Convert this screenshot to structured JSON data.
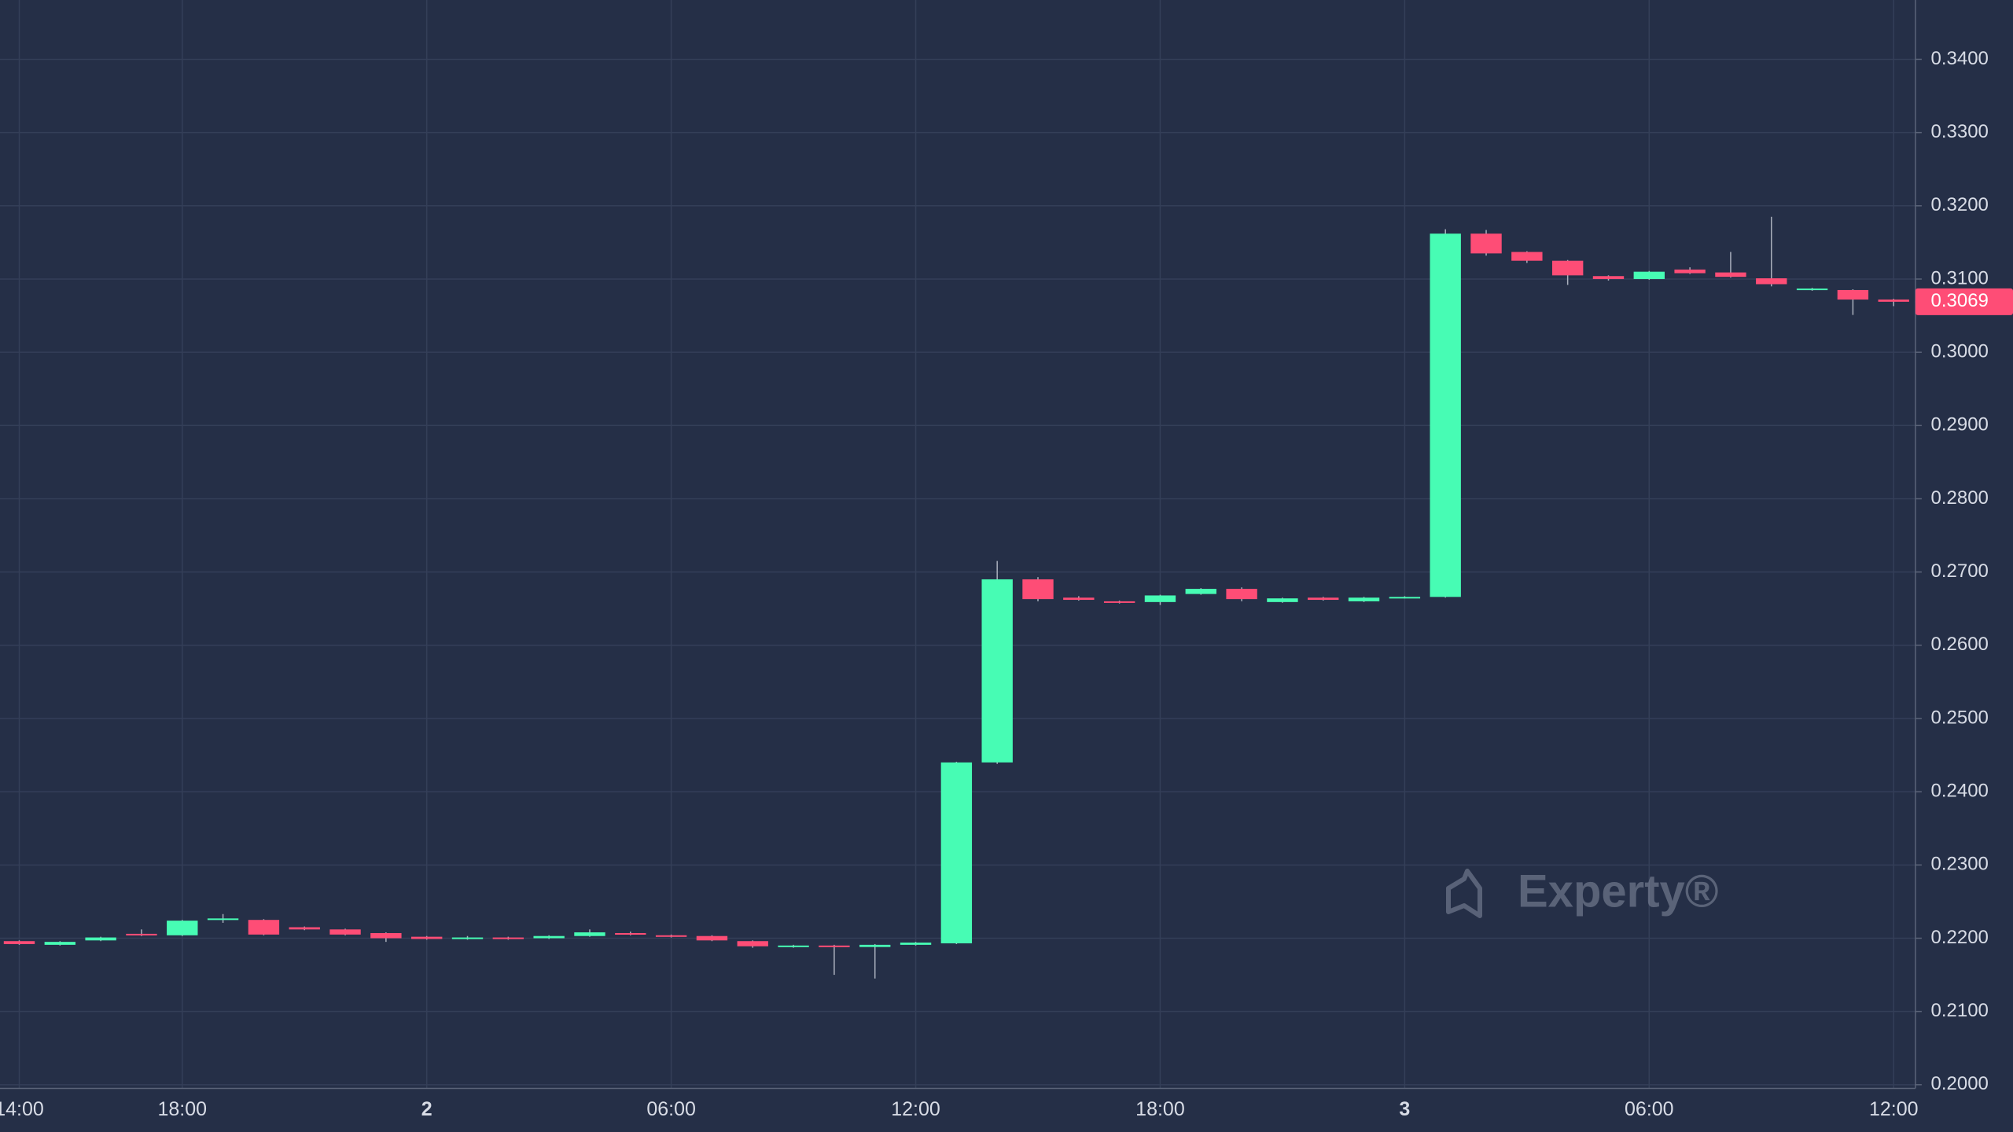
{
  "chart_data": {
    "type": "candlestick",
    "up_color": "#47fcb4",
    "down_color": "#fe4d76",
    "grid": true,
    "categories": [
      "14:00",
      null,
      null,
      null,
      "18:00",
      null,
      null,
      null,
      null,
      null,
      "2",
      null,
      null,
      null,
      null,
      null,
      "06:00",
      null,
      null,
      null,
      null,
      null,
      "12:00",
      null,
      null,
      null,
      null,
      null,
      "18:00",
      null,
      null,
      null,
      null,
      null,
      "3",
      null,
      null,
      null,
      null,
      null,
      "06:00",
      null,
      null,
      null,
      null,
      null,
      "12:00"
    ],
    "open": [
      0.2196,
      0.2191,
      0.2197,
      0.2206,
      0.2204,
      0.2225,
      0.2225,
      0.2215,
      0.2212,
      0.2207,
      0.2202,
      0.2199,
      0.2201,
      0.22,
      0.2203,
      0.2207,
      0.2204,
      0.2203,
      0.2196,
      0.2188,
      0.219,
      0.2188,
      0.2191,
      0.2193,
      0.244,
      0.269,
      0.2665,
      0.266,
      0.2659,
      0.267,
      0.2677,
      0.2659,
      0.2665,
      0.266,
      0.2665,
      0.2666,
      0.3162,
      0.3137,
      0.3125,
      0.3104,
      0.31,
      0.3113,
      0.3109,
      0.3101,
      0.3085,
      0.3085,
      0.3072
    ],
    "high": [
      0.2197,
      0.2196,
      0.2202,
      0.2212,
      0.2225,
      0.2233,
      0.2226,
      0.2216,
      0.2213,
      0.2208,
      0.2203,
      0.2203,
      0.2202,
      0.2204,
      0.2212,
      0.2209,
      0.2205,
      0.2204,
      0.2197,
      0.2191,
      0.2191,
      0.2192,
      0.2195,
      0.2441,
      0.2715,
      0.2693,
      0.2667,
      0.2661,
      0.2669,
      0.2678,
      0.2679,
      0.2665,
      0.2666,
      0.2666,
      0.2667,
      0.3168,
      0.3167,
      0.3138,
      0.3126,
      0.3105,
      0.3111,
      0.3116,
      0.3137,
      0.3185,
      0.3088,
      0.3086,
      0.3073
    ],
    "low": [
      0.2191,
      0.219,
      0.2196,
      0.2203,
      0.2203,
      0.2221,
      0.2204,
      0.2211,
      0.2204,
      0.2195,
      0.2198,
      0.2198,
      0.2198,
      0.2199,
      0.2202,
      0.2204,
      0.2201,
      0.2196,
      0.2187,
      0.2187,
      0.215,
      0.2145,
      0.219,
      0.2192,
      0.2438,
      0.266,
      0.2661,
      0.2657,
      0.2655,
      0.2669,
      0.266,
      0.2658,
      0.2661,
      0.2659,
      0.2664,
      0.2665,
      0.3132,
      0.3122,
      0.3092,
      0.3098,
      0.3099,
      0.3107,
      0.3102,
      0.309,
      0.3084,
      0.3051,
      0.3063
    ],
    "close": [
      0.2192,
      0.2195,
      0.2201,
      0.2204,
      0.2224,
      0.2227,
      0.2205,
      0.2212,
      0.2205,
      0.22,
      0.2199,
      0.2201,
      0.2199,
      0.2203,
      0.2208,
      0.2205,
      0.2202,
      0.2197,
      0.2189,
      0.219,
      0.2189,
      0.2191,
      0.2194,
      0.244,
      0.269,
      0.2663,
      0.2662,
      0.2658,
      0.2668,
      0.2677,
      0.2663,
      0.2664,
      0.2662,
      0.2665,
      0.2666,
      0.3162,
      0.3135,
      0.3125,
      0.3105,
      0.31,
      0.311,
      0.3108,
      0.3103,
      0.3093,
      0.3087,
      0.3072,
      0.3069
    ],
    "ylim": [
      0.1995,
      0.3481
    ],
    "yticks": [
      {
        "value": 0.2,
        "label": "0.2000"
      },
      {
        "value": 0.21,
        "label": "0.2100"
      },
      {
        "value": 0.22,
        "label": "0.2200"
      },
      {
        "value": 0.23,
        "label": "0.2300"
      },
      {
        "value": 0.24,
        "label": "0.2400"
      },
      {
        "value": 0.25,
        "label": "0.2500"
      },
      {
        "value": 0.26,
        "label": "0.2600"
      },
      {
        "value": 0.27,
        "label": "0.2700"
      },
      {
        "value": 0.28,
        "label": "0.2800"
      },
      {
        "value": 0.29,
        "label": "0.2900"
      },
      {
        "value": 0.3,
        "label": "0.3000"
      },
      {
        "value": 0.31,
        "label": "0.3100"
      },
      {
        "value": 0.32,
        "label": "0.3200"
      },
      {
        "value": 0.33,
        "label": "0.3300"
      },
      {
        "value": 0.34,
        "label": "0.3400"
      }
    ],
    "last_price": 0.3069,
    "watermark": "Experty®"
  }
}
